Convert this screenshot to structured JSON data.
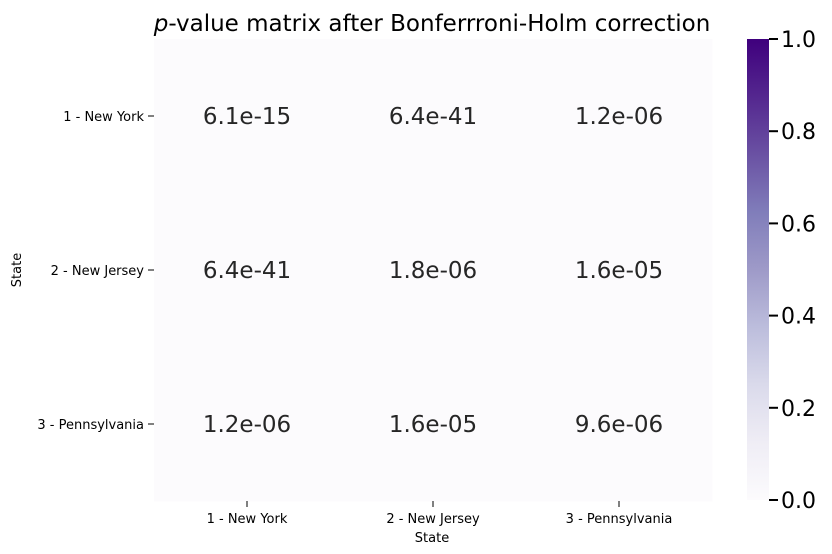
{
  "chart_data": {
    "type": "heatmap",
    "title_italic": "p",
    "title_rest": "-value matrix after Bonferrroni-Holm correction",
    "xlabel": "State",
    "ylabel": "State",
    "row_labels": [
      "1 - New York",
      "2 - New Jersey",
      "3 - Pennsylvania"
    ],
    "col_labels": [
      "1 - New York",
      "2 - New Jersey",
      "3 - Pennsylvania"
    ],
    "cell_labels": [
      [
        "6.1e-15",
        "6.4e-41",
        "1.2e-06"
      ],
      [
        "6.4e-41",
        "1.8e-06",
        "1.6e-05"
      ],
      [
        "1.2e-06",
        "1.6e-05",
        "9.6e-06"
      ]
    ],
    "values": [
      [
        6.1e-15,
        6.4e-41,
        1.2e-06
      ],
      [
        6.4e-41,
        1.8e-06,
        1.6e-05
      ],
      [
        1.2e-06,
        1.6e-05,
        9.6e-06
      ]
    ],
    "colorbar": {
      "range": [
        0.0,
        1.0
      ],
      "ticks": [
        "0.0",
        "0.2",
        "0.4",
        "0.6",
        "0.8",
        "1.0"
      ],
      "colormap": "Purples",
      "color_low": "#fcfbfd",
      "color_high": "#3f007d"
    }
  }
}
